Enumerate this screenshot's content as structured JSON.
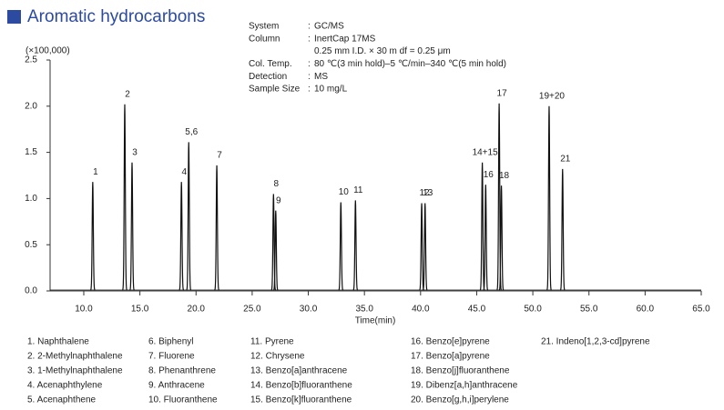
{
  "chart_data": {
    "type": "chromatogram",
    "title": "Aromatic hydrocarbons",
    "conditions": [
      {
        "label": "System",
        "value": "GC/MS"
      },
      {
        "label": "Column",
        "value": "InertCap 17MS"
      },
      {
        "label": "",
        "value": "0.25 mm I.D. × 30 m   df = 0.25 μm"
      },
      {
        "label": "Col. Temp.",
        "value": "80 ℃(3 min hold)–5 ℃/min–340 ℃(5 min hold)"
      },
      {
        "label": "Detection",
        "value": "MS"
      },
      {
        "label": "Sample Size",
        "value": "10 mg/L"
      }
    ],
    "y_unit": "(×100,000)",
    "xlabel": "Time(min)",
    "x": [
      10.8,
      13.65,
      14.3,
      18.7,
      19.35,
      21.85,
      26.9,
      27.1,
      32.9,
      34.2,
      40.1,
      40.4,
      45.5,
      45.8,
      47.0,
      47.2,
      51.45,
      52.65
    ],
    "values": [
      1.17,
      2.01,
      1.38,
      1.17,
      1.6,
      1.35,
      1.04,
      0.86,
      0.95,
      0.97,
      0.94,
      0.94,
      1.38,
      1.14,
      2.02,
      1.13,
      1.99,
      1.31
    ],
    "peak_labels": [
      "1",
      "2",
      "3",
      "4",
      "5,6",
      "7",
      "8",
      "9",
      "10",
      "11",
      "12",
      "13",
      "14+15",
      "16",
      "17",
      "18",
      "19+20",
      "21"
    ],
    "color": "#111111",
    "xlim": [
      7,
      65
    ],
    "ylim": [
      0,
      2.5
    ],
    "xticks": [
      {
        "value": 10,
        "label": "10.0"
      },
      {
        "value": 15,
        "label": "15.0"
      },
      {
        "value": 20,
        "label": "20.0"
      },
      {
        "value": 25,
        "label": "25.0"
      },
      {
        "value": 30,
        "label": "30.0"
      },
      {
        "value": 35,
        "label": "35.0"
      },
      {
        "value": 40,
        "label": "40.0"
      },
      {
        "value": 45,
        "label": "45.0"
      },
      {
        "value": 50,
        "label": "50.0"
      },
      {
        "value": 55,
        "label": "55.0"
      },
      {
        "value": 60,
        "label": "60.0"
      },
      {
        "value": 65,
        "label": "65.0"
      }
    ],
    "yticks": [
      {
        "value": 0,
        "label": "0.0"
      },
      0.5,
      {
        "value": 1,
        "label": "1.0"
      },
      1.5,
      {
        "value": 2,
        "label": "2.0"
      },
      2.5
    ],
    "compounds": [
      "1.  Naphthalene",
      "2.  2-Methylnaphthalene",
      "3.  1-Methylnaphthalene",
      "4.  Acenaphthylene",
      "5.  Acenaphthene",
      "6.  Biphenyl",
      "7.  Fluorene",
      "8.  Phenanthrene",
      "9.  Anthracene",
      "10.  Fluoranthene",
      "11.  Pyrene",
      "12.  Chrysene",
      "13.  Benzo[a]anthracene",
      "14.  Benzo[b]fluoranthene",
      "15.  Benzo[k]fluoranthene",
      "16.  Benzo[e]pyrene",
      "17.  Benzo[a]pyrene",
      "18.  Benzo[j]fluoranthene",
      "19.  Dibenz[a,h]anthracene",
      "20.  Benzo[g,h,i]perylene",
      "21.  Indeno[1,2,3-cd]pyrene"
    ]
  }
}
